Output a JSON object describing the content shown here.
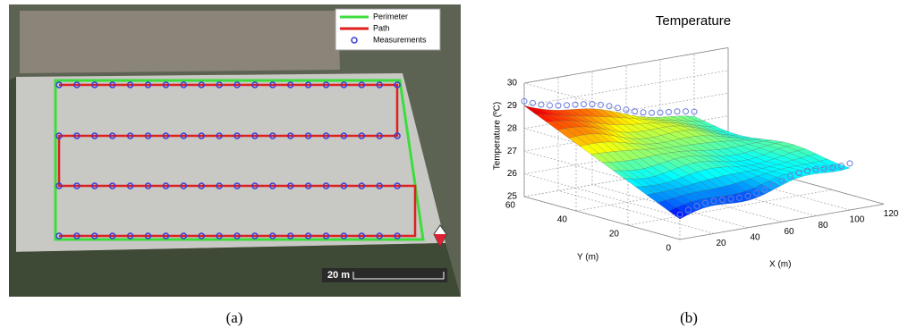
{
  "panel_a": {
    "legend": [
      "Perimeter",
      "Path",
      "Measurements"
    ],
    "scale_label": "20 m",
    "caption": "(a)"
  },
  "panel_b": {
    "title": "Temperature",
    "z_label": "Temperature (ºC)",
    "y_label": "Y (m)",
    "x_label": "X (m)",
    "z_ticks": [
      25,
      26,
      27,
      28,
      29,
      30
    ],
    "y_ticks": [
      0,
      20,
      40,
      60
    ],
    "x_ticks": [
      20,
      40,
      60,
      80,
      100,
      120
    ],
    "caption": "(b)"
  }
}
